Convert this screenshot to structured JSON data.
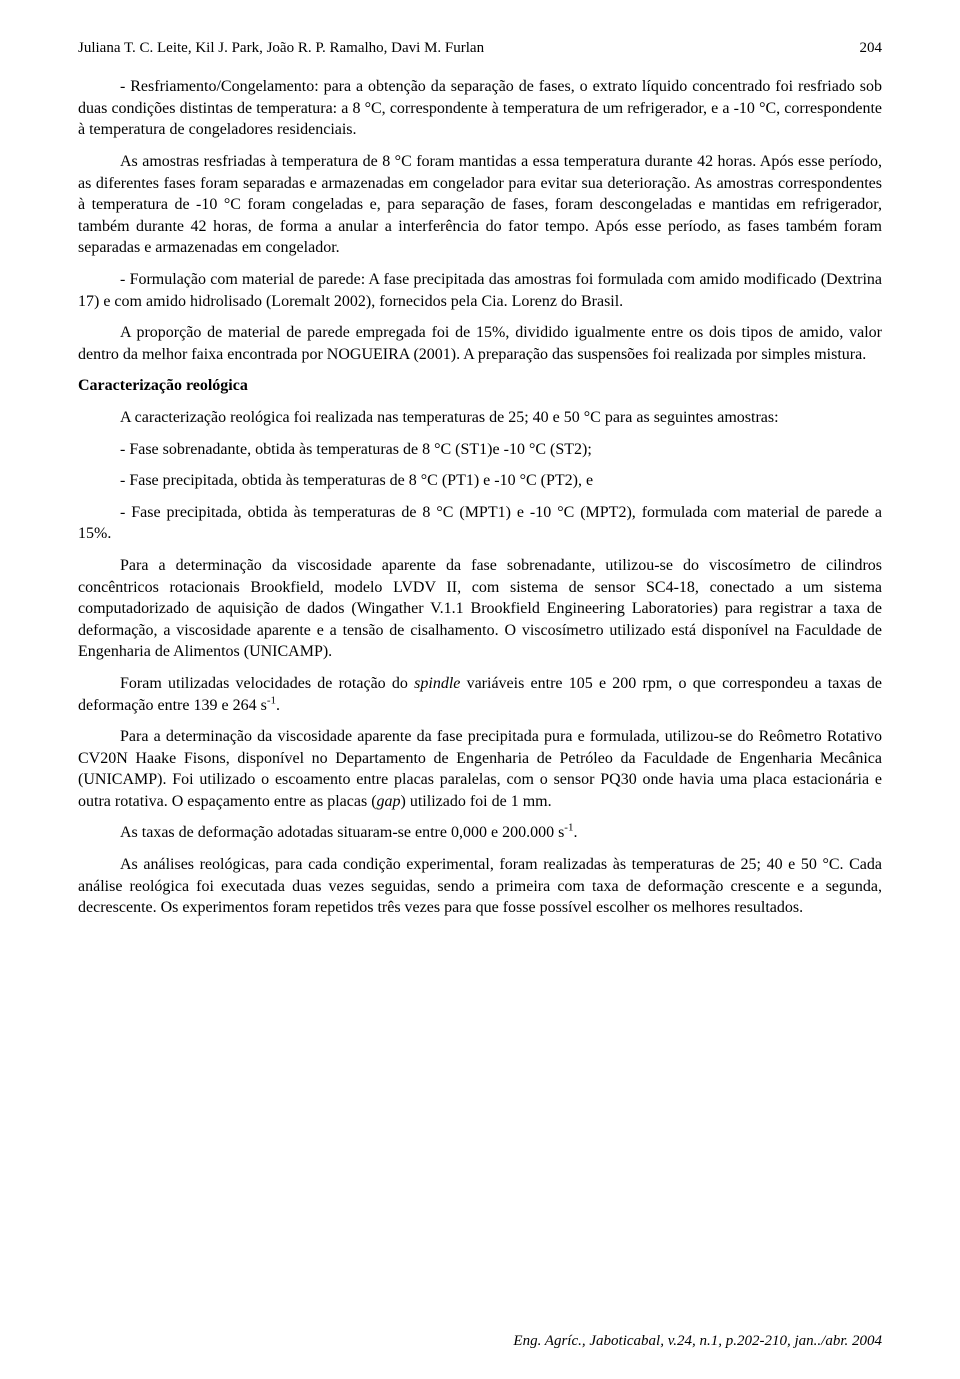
{
  "header": {
    "authors": "Juliana T. C. Leite, Kil J. Park, João R. P. Ramalho, Davi M. Furlan",
    "page_number": "204"
  },
  "body": {
    "p1": "- Resfriamento/Congelamento: para a obtenção da separação de fases, o extrato líquido concentrado foi resfriado sob duas condições distintas de temperatura: a 8 °C, correspondente à temperatura de um refrigerador, e a -10 °C, correspondente à temperatura de congeladores residenciais.",
    "p2": "As amostras resfriadas à temperatura de 8 °C foram mantidas a essa temperatura durante 42 horas. Após esse período, as diferentes fases foram separadas e armazenadas em congelador para evitar sua deterioração. As amostras correspondentes à temperatura de -10 °C foram congeladas e, para separação de fases, foram descongeladas e mantidas em refrigerador, também durante 42 horas, de forma a anular a interferência do fator tempo. Após esse período, as fases também foram separadas e armazenadas em congelador.",
    "p3": "- Formulação com material de parede: A fase precipitada das amostras foi formulada com amido modificado (Dextrina 17) e com amido hidrolisado (Loremalt 2002), fornecidos pela Cia. Lorenz do Brasil.",
    "p4": "A proporção de material de parede empregada foi de 15%, dividido igualmente entre os dois tipos de amido, valor dentro da melhor faixa encontrada por NOGUEIRA (2001). A preparação das suspensões foi realizada por simples mistura.",
    "section_title": "Caracterização reológica",
    "p5": "A caracterização reológica foi realizada nas temperaturas de 25; 40 e 50 °C para as seguintes amostras:",
    "p6": "- Fase sobrenadante, obtida às temperaturas de 8 °C (ST1)e -10 °C (ST2);",
    "p7": "- Fase precipitada, obtida às temperaturas de 8 °C (PT1) e -10 °C (PT2), e",
    "p8": "- Fase precipitada, obtida às temperaturas de 8 °C (MPT1) e -10 °C (MPT2), formulada com material de parede a 15%.",
    "p9": "Para a determinação da viscosidade aparente da fase sobrenadante, utilizou-se do viscosímetro de cilindros concêntricos rotacionais Brookfield, modelo LVDV II, com sistema de sensor SC4-18, conectado a um sistema computadorizado de aquisição de dados (Wingather V.1.1 Brookfield Engineering Laboratories) para registrar a taxa de deformação, a viscosidade aparente e a tensão de cisalhamento. O viscosímetro utilizado está disponível na Faculdade de Engenharia de Alimentos (UNICAMP).",
    "p10_a": "Foram utilizadas velocidades de rotação do ",
    "p10_i": "spindle",
    "p10_b": " variáveis entre 105 e 200 rpm, o que correspondeu a taxas de deformação entre 139 e 264 s",
    "p10_sup": "-1",
    "p10_c": ".",
    "p11_a": "Para a determinação da viscosidade aparente da fase precipitada pura e formulada, utilizou-se do Reômetro Rotativo CV20N Haake Fisons, disponível no Departamento de Engenharia de Petróleo da Faculdade de Engenharia Mecânica (UNICAMP). Foi utilizado o escoamento entre placas paralelas, com o sensor PQ30 onde havia uma placa estacionária e outra rotativa. O espaçamento entre as placas (",
    "p11_i": "gap",
    "p11_b": ") utilizado foi de 1 mm.",
    "p12_a": "As taxas de deformação adotadas situaram-se entre 0,000 e 200.000 s",
    "p12_sup": "-1",
    "p12_b": ".",
    "p13": "As análises reológicas, para cada condição experimental, foram realizadas às temperaturas de 25; 40 e 50 °C. Cada análise reológica foi executada duas vezes seguidas, sendo a primeira com taxa de deformação crescente e a segunda, decrescente. Os experimentos foram repetidos três vezes para que fosse possível escolher os melhores resultados."
  },
  "footer": {
    "citation": "Eng. Agríc., Jaboticabal, v.24, n.1, p.202-210, jan../abr. 2004"
  }
}
